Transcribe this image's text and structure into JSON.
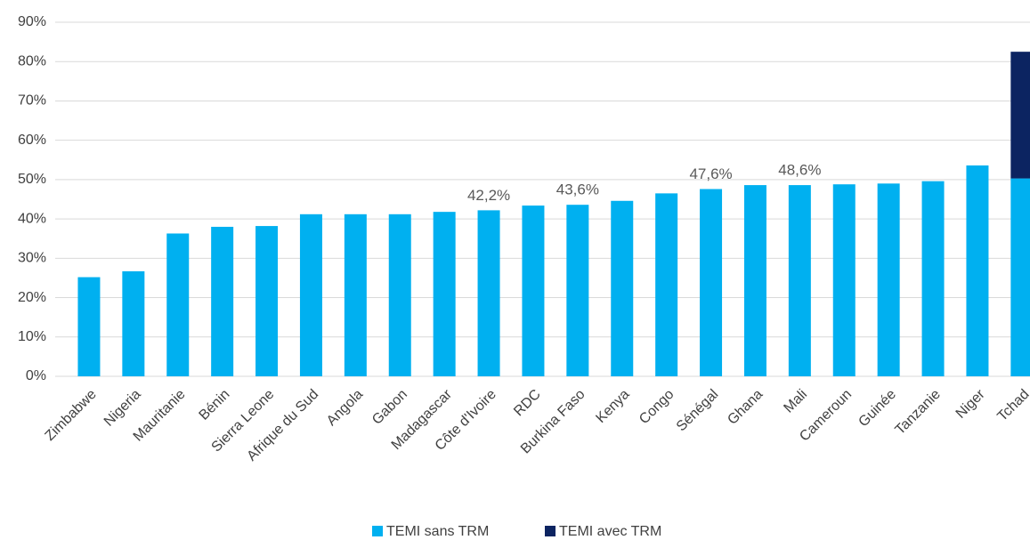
{
  "chart_data": {
    "type": "stacked_bar",
    "categories": [
      "Zimbabwe",
      "Nigeria",
      "Mauritanie",
      "Bénin",
      "Sierra Leone",
      "Afrique du Sud",
      "Angola",
      "Gabon",
      "Madagascar",
      "Côte d'Ivoire",
      "RDC",
      "Burkina Faso",
      "Kenya",
      "Congo",
      "Sénégal",
      "Ghana",
      "Mali",
      "Cameroun",
      "Guinée",
      "Tanzanie",
      "Niger",
      "Tchad"
    ],
    "series": [
      {
        "name": "TEMI sans TRM",
        "color": "#00b0f0",
        "values": [
          25.2,
          26.7,
          36.3,
          38.0,
          38.2,
          41.2,
          41.2,
          41.2,
          41.8,
          42.2,
          43.4,
          43.6,
          44.6,
          46.5,
          47.6,
          48.6,
          48.6,
          48.8,
          49.0,
          49.6,
          53.6,
          50.3
        ],
        "value_labels": [
          null,
          null,
          null,
          null,
          null,
          null,
          null,
          null,
          null,
          "42,2%",
          null,
          "43,6%",
          null,
          null,
          "47,6%",
          null,
          "48,6%",
          null,
          null,
          null,
          null,
          null
        ]
      },
      {
        "name": "TEMI avec TRM",
        "color": "#0c2461",
        "values": [
          null,
          null,
          null,
          null,
          null,
          null,
          null,
          null,
          null,
          null,
          null,
          null,
          null,
          null,
          null,
          null,
          null,
          null,
          null,
          null,
          null,
          32.2
        ]
      }
    ],
    "ylim": [
      0,
      90
    ],
    "yticks": [
      {
        "value": 0,
        "label": "0%"
      },
      {
        "value": 10,
        "label": "10%"
      },
      {
        "value": 20,
        "label": "20%"
      },
      {
        "value": 30,
        "label": "30%"
      },
      {
        "value": 40,
        "label": "40%"
      },
      {
        "value": 50,
        "label": "50%"
      },
      {
        "value": 60,
        "label": "60%"
      },
      {
        "value": 70,
        "label": "70%"
      },
      {
        "value": 80,
        "label": "80%"
      },
      {
        "value": 90,
        "label": "90%"
      }
    ],
    "grid": true
  }
}
